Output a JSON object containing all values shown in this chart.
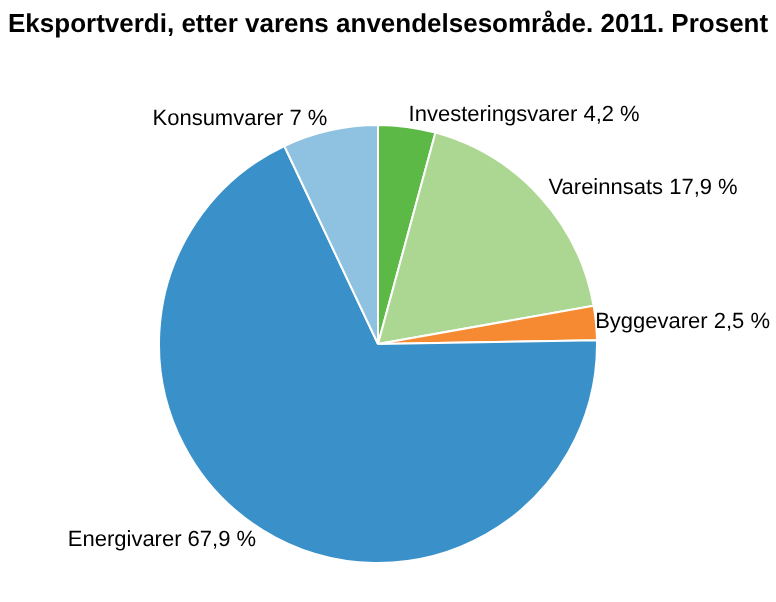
{
  "chart_data": {
    "type": "pie",
    "title": "Eksportverdi, etter varens anvendelsesområde. 2011. Prosent",
    "categories": [
      "Investeringsvarer",
      "Vareinnsats",
      "Byggevarer",
      "Energivarer",
      "Konsumvarer"
    ],
    "values": [
      4.2,
      17.9,
      2.5,
      67.9,
      7
    ],
    "value_labels": [
      "4,2 %",
      "17,9 %",
      "2,5 %",
      "67,9 %",
      "7 %"
    ],
    "colors": [
      "#5cb946",
      "#acd793",
      "#f68a33",
      "#3a91c9",
      "#8fc2e1"
    ],
    "legend": false
  }
}
